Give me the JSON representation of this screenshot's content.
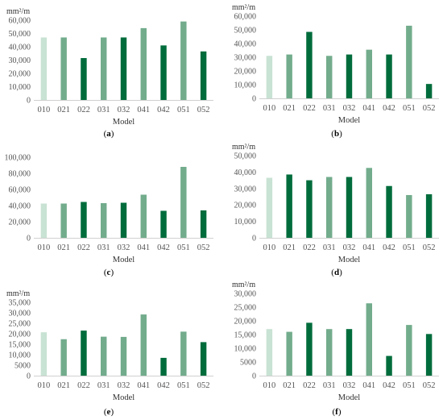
{
  "figure": {
    "panels": [
      {
        "label_open": "(",
        "label_letter": "a",
        "label_close": ")"
      },
      {
        "label_open": "(",
        "label_letter": "b",
        "label_close": ")"
      },
      {
        "label_open": "(",
        "label_letter": "c",
        "label_close": ")"
      },
      {
        "label_open": "(",
        "label_letter": "d",
        "label_close": ")"
      },
      {
        "label_open": "(",
        "label_letter": "e",
        "label_close": ")"
      },
      {
        "label_open": "(",
        "label_letter": "f",
        "label_close": ")"
      }
    ]
  },
  "chart_data": [
    {
      "type": "bar",
      "unit_label": "mm²/m",
      "xlabel": "Model",
      "categories": [
        "010",
        "021",
        "022",
        "031",
        "032",
        "041",
        "042",
        "051",
        "052"
      ],
      "values": [
        47000,
        47000,
        31500,
        47000,
        47000,
        54000,
        41000,
        59000,
        36500
      ],
      "ylim": [
        0,
        60000
      ],
      "yticks": [
        "0",
        "10,000",
        "20,000",
        "30,000",
        "40,000",
        "50,000",
        "60,000"
      ],
      "colors": [
        "#c8e2d3",
        "#72ac8c",
        "#006c3c",
        "#72ac8c",
        "#006c3c",
        "#72ac8c",
        "#006c3c",
        "#72ac8c",
        "#006c3c"
      ]
    },
    {
      "type": "bar",
      "unit_label": "mm²/m",
      "xlabel": "Model",
      "categories": [
        "010",
        "021",
        "022",
        "031",
        "032",
        "041",
        "042",
        "051",
        "052"
      ],
      "values": [
        31000,
        32000,
        48500,
        31000,
        32000,
        35500,
        32000,
        53000,
        10500
      ],
      "ylim": [
        0,
        60000
      ],
      "yticks": [
        "0",
        "10,000",
        "20,000",
        "30,000",
        "40,000",
        "50,000",
        "60,000"
      ],
      "colors": [
        "#c8e2d3",
        "#72ac8c",
        "#006c3c",
        "#72ac8c",
        "#006c3c",
        "#72ac8c",
        "#006c3c",
        "#72ac8c",
        "#006c3c"
      ]
    },
    {
      "type": "bar",
      "unit_label": "",
      "xlabel": "Model",
      "categories": [
        "010",
        "021",
        "022",
        "031",
        "032",
        "041",
        "042",
        "051",
        "052"
      ],
      "values": [
        42500,
        42500,
        44500,
        43000,
        43500,
        53500,
        33500,
        88000,
        34000
      ],
      "ylim": [
        0,
        100000
      ],
      "yticks": [
        "0",
        "20,000",
        "40,000",
        "60,000",
        "80,000",
        "100,000"
      ],
      "colors": [
        "#c8e2d3",
        "#72ac8c",
        "#006c3c",
        "#72ac8c",
        "#006c3c",
        "#72ac8c",
        "#006c3c",
        "#72ac8c",
        "#006c3c"
      ]
    },
    {
      "type": "bar",
      "unit_label": "mm²/m",
      "xlabel": "Model",
      "categories": [
        "010",
        "021",
        "022",
        "031",
        "032",
        "041",
        "042",
        "051",
        "052"
      ],
      "values": [
        36500,
        38500,
        35000,
        37000,
        37000,
        42500,
        31500,
        26000,
        26500
      ],
      "ylim": [
        0,
        50000
      ],
      "yticks": [
        "0",
        "10,000",
        "20,000",
        "30,000",
        "40,000",
        "50,000"
      ],
      "colors": [
        "#c8e2d3",
        "#006c3c",
        "#006c3c",
        "#72ac8c",
        "#006c3c",
        "#72ac8c",
        "#006c3c",
        "#72ac8c",
        "#006c3c"
      ]
    },
    {
      "type": "bar",
      "unit_label": "mm²/m",
      "xlabel": "Model",
      "categories": [
        "010",
        "021",
        "022",
        "031",
        "032",
        "041",
        "042",
        "051",
        "052"
      ],
      "values": [
        20700,
        17400,
        21500,
        18600,
        18500,
        29200,
        8500,
        21000,
        16000
      ],
      "ylim": [
        0,
        35000
      ],
      "yticks": [
        "0",
        "5000",
        "10,000",
        "15,000",
        "20,000",
        "25,000",
        "30,000",
        "35,000"
      ],
      "colors": [
        "#c8e2d3",
        "#72ac8c",
        "#006c3c",
        "#72ac8c",
        "#72ac8c",
        "#72ac8c",
        "#006c3c",
        "#72ac8c",
        "#006c3c"
      ]
    },
    {
      "type": "bar",
      "unit_label": "mm²/m",
      "xlabel": "Model",
      "categories": [
        "010",
        "021",
        "022",
        "031",
        "032",
        "041",
        "042",
        "051",
        "052"
      ],
      "values": [
        17000,
        16000,
        19300,
        17000,
        17000,
        26400,
        7200,
        18500,
        15200
      ],
      "ylim": [
        0,
        30000
      ],
      "yticks": [
        "0",
        "5000",
        "10,000",
        "15,000",
        "20,000",
        "25,000",
        "30,000"
      ],
      "colors": [
        "#c8e2d3",
        "#72ac8c",
        "#006c3c",
        "#72ac8c",
        "#006c3c",
        "#72ac8c",
        "#006c3c",
        "#72ac8c",
        "#006c3c"
      ]
    }
  ]
}
